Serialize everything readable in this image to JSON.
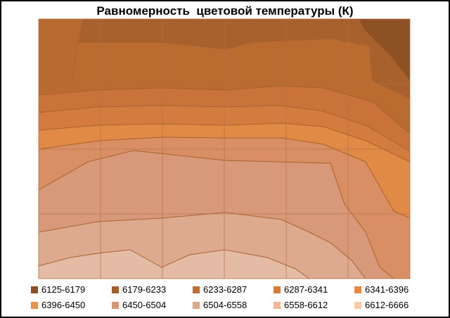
{
  "chart_data": {
    "type": "contour",
    "title": "Равномерность  цветовой температуры (К)",
    "xlabel": "",
    "ylabel": "",
    "grid": true,
    "legend_placement": "bottom",
    "legend": [
      {
        "label": "6125-6179",
        "color": "#8B5023"
      },
      {
        "label": "6179-6233",
        "color": "#A35E2B"
      },
      {
        "label": "6233-6287",
        "color": "#BD6D31"
      },
      {
        "label": "6287-6341",
        "color": "#D47C38"
      },
      {
        "label": "6341-6396",
        "color": "#E58A40"
      },
      {
        "label": "6396-6450",
        "color": "#F09146"
      },
      {
        "label": "6450-6504",
        "color": "#DA9571"
      },
      {
        "label": "6504-6558",
        "color": "#E0A68A"
      },
      {
        "label": "6558-6612",
        "color": "#F5B58F"
      },
      {
        "label": "6612-6666",
        "color": "#FCC9A8"
      }
    ]
  }
}
